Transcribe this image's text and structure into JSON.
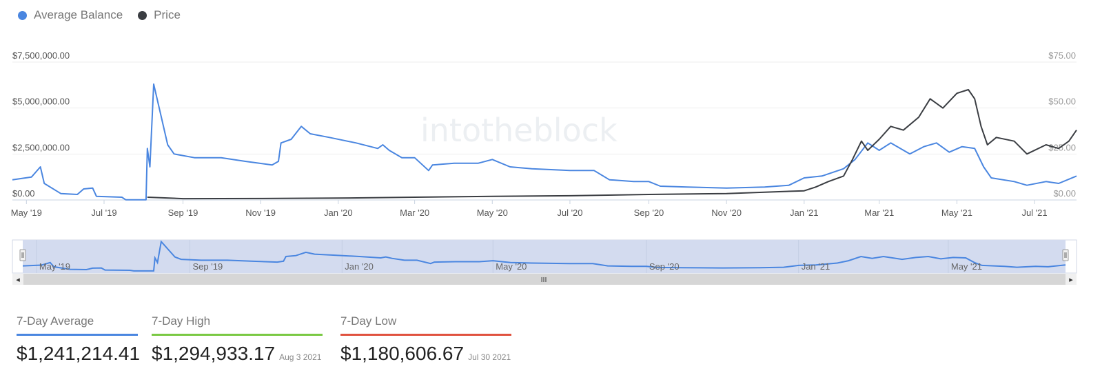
{
  "legend": {
    "items": [
      {
        "label": "Average Balance",
        "color": "#4a86e0"
      },
      {
        "label": "Price",
        "color": "#3a3d42"
      }
    ]
  },
  "watermark": "intotheblock",
  "chart_data": {
    "type": "line",
    "x_axis_type": "date",
    "x_range": [
      "2019-04-20",
      "2021-08-03"
    ],
    "x_tick_labels": [
      "May '19",
      "Jul '19",
      "Sep '19",
      "Nov '19",
      "Jan '20",
      "Mar '20",
      "May '20",
      "Jul '20",
      "Sep '20",
      "Nov '20",
      "Jan '21",
      "Mar '21",
      "May '21",
      "Jul '21"
    ],
    "x_ticks": [
      "2019-05-01",
      "2019-07-01",
      "2019-09-01",
      "2019-11-01",
      "2020-01-01",
      "2020-03-01",
      "2020-05-01",
      "2020-07-01",
      "2020-09-01",
      "2020-11-01",
      "2021-01-01",
      "2021-03-01",
      "2021-05-01",
      "2021-07-01"
    ],
    "y_left": {
      "ticks": [
        0,
        2500000,
        5000000,
        7500000
      ],
      "tick_labels": [
        "$0.00",
        "$2,500,000.00",
        "$5,000,000.00",
        "$7,500,000.00"
      ],
      "ylim": [
        0,
        7500000
      ]
    },
    "y_right": {
      "ticks": [
        0,
        25,
        50,
        75
      ],
      "tick_labels": [
        "$0.00",
        "$25.00",
        "$50.00",
        "$75.00"
      ],
      "ylim": [
        0,
        75
      ]
    },
    "grid": true,
    "legend_position": "top-left",
    "series": [
      {
        "name": "Average Balance",
        "axis": "left",
        "color": "#4a86e0",
        "points": [
          [
            "2019-04-20",
            1100000
          ],
          [
            "2019-05-05",
            1250000
          ],
          [
            "2019-05-12",
            1800000
          ],
          [
            "2019-05-15",
            900000
          ],
          [
            "2019-05-28",
            350000
          ],
          [
            "2019-06-10",
            300000
          ],
          [
            "2019-06-15",
            600000
          ],
          [
            "2019-06-22",
            650000
          ],
          [
            "2019-06-25",
            200000
          ],
          [
            "2019-07-15",
            150000
          ],
          [
            "2019-07-18",
            10000
          ],
          [
            "2019-08-03",
            10000
          ],
          [
            "2019-08-04",
            2800000
          ],
          [
            "2019-08-06",
            1800000
          ],
          [
            "2019-08-09",
            6300000
          ],
          [
            "2019-08-11",
            5700000
          ],
          [
            "2019-08-15",
            4500000
          ],
          [
            "2019-08-20",
            3000000
          ],
          [
            "2019-08-25",
            2500000
          ],
          [
            "2019-09-10",
            2300000
          ],
          [
            "2019-10-01",
            2300000
          ],
          [
            "2019-10-20",
            2100000
          ],
          [
            "2019-11-10",
            1900000
          ],
          [
            "2019-11-15",
            2100000
          ],
          [
            "2019-11-17",
            3100000
          ],
          [
            "2019-11-25",
            3300000
          ],
          [
            "2019-12-03",
            4000000
          ],
          [
            "2019-12-10",
            3600000
          ],
          [
            "2019-12-25",
            3400000
          ],
          [
            "2020-01-15",
            3100000
          ],
          [
            "2020-02-01",
            2800000
          ],
          [
            "2020-02-05",
            3000000
          ],
          [
            "2020-02-10",
            2700000
          ],
          [
            "2020-02-20",
            2300000
          ],
          [
            "2020-03-01",
            2300000
          ],
          [
            "2020-03-12",
            1600000
          ],
          [
            "2020-03-15",
            1900000
          ],
          [
            "2020-04-01",
            2000000
          ],
          [
            "2020-04-20",
            2000000
          ],
          [
            "2020-05-01",
            2200000
          ],
          [
            "2020-05-15",
            1800000
          ],
          [
            "2020-06-01",
            1700000
          ],
          [
            "2020-07-01",
            1600000
          ],
          [
            "2020-07-20",
            1600000
          ],
          [
            "2020-08-01",
            1100000
          ],
          [
            "2020-08-20",
            1000000
          ],
          [
            "2020-09-01",
            1000000
          ],
          [
            "2020-09-10",
            750000
          ],
          [
            "2020-10-01",
            700000
          ],
          [
            "2020-11-01",
            650000
          ],
          [
            "2020-12-01",
            700000
          ],
          [
            "2020-12-20",
            800000
          ],
          [
            "2021-01-01",
            1200000
          ],
          [
            "2021-01-15",
            1300000
          ],
          [
            "2021-02-01",
            1700000
          ],
          [
            "2021-02-10",
            2200000
          ],
          [
            "2021-02-20",
            3100000
          ],
          [
            "2021-03-01",
            2700000
          ],
          [
            "2021-03-10",
            3100000
          ],
          [
            "2021-03-25",
            2500000
          ],
          [
            "2021-04-05",
            2900000
          ],
          [
            "2021-04-15",
            3100000
          ],
          [
            "2021-04-25",
            2600000
          ],
          [
            "2021-05-05",
            2900000
          ],
          [
            "2021-05-15",
            2800000
          ],
          [
            "2021-05-22",
            1800000
          ],
          [
            "2021-05-28",
            1200000
          ],
          [
            "2021-06-15",
            1000000
          ],
          [
            "2021-06-25",
            800000
          ],
          [
            "2021-07-10",
            1000000
          ],
          [
            "2021-07-20",
            900000
          ],
          [
            "2021-08-03",
            1300000
          ]
        ]
      },
      {
        "name": "Price",
        "axis": "right",
        "color": "#3a3d42",
        "points": [
          [
            "2019-08-04",
            1.5
          ],
          [
            "2019-09-01",
            0.7
          ],
          [
            "2019-11-01",
            0.8
          ],
          [
            "2020-01-01",
            1.0
          ],
          [
            "2020-03-01",
            1.5
          ],
          [
            "2020-05-01",
            2.0
          ],
          [
            "2020-07-01",
            2.3
          ],
          [
            "2020-09-01",
            3.0
          ],
          [
            "2020-11-01",
            3.5
          ],
          [
            "2021-01-01",
            5.0
          ],
          [
            "2021-01-10",
            7.0
          ],
          [
            "2021-01-20",
            10.0
          ],
          [
            "2021-02-01",
            13.0
          ],
          [
            "2021-02-08",
            22.0
          ],
          [
            "2021-02-15",
            32.0
          ],
          [
            "2021-02-20",
            27.0
          ],
          [
            "2021-03-01",
            33.0
          ],
          [
            "2021-03-10",
            40.0
          ],
          [
            "2021-03-20",
            38.0
          ],
          [
            "2021-04-01",
            45.0
          ],
          [
            "2021-04-10",
            55.0
          ],
          [
            "2021-04-20",
            50.0
          ],
          [
            "2021-05-01",
            58.0
          ],
          [
            "2021-05-10",
            60.0
          ],
          [
            "2021-05-15",
            55.0
          ],
          [
            "2021-05-20",
            40.0
          ],
          [
            "2021-05-25",
            30.0
          ],
          [
            "2021-06-01",
            34.0
          ],
          [
            "2021-06-15",
            32.0
          ],
          [
            "2021-06-25",
            25.0
          ],
          [
            "2021-07-10",
            30.0
          ],
          [
            "2021-07-20",
            28.0
          ],
          [
            "2021-07-28",
            32.0
          ],
          [
            "2021-08-03",
            38.0
          ]
        ]
      }
    ]
  },
  "navigator": {
    "tick_labels": [
      "May '19",
      "Sep '19",
      "Jan '20",
      "May '20",
      "Sep '20",
      "Jan '21",
      "May '21"
    ],
    "ticks": [
      "2019-05-01",
      "2019-09-01",
      "2020-01-01",
      "2020-05-01",
      "2020-09-01",
      "2021-01-01",
      "2021-05-01"
    ],
    "selection_range": [
      "2019-04-20",
      "2021-08-03"
    ],
    "handle_glyph": "Ⅲ",
    "left_arrow": "◂",
    "right_arrow": "▸",
    "scroll_grip": "III"
  },
  "stats": [
    {
      "label": "7-Day Average",
      "value": "$1,241,214.41",
      "date": "",
      "color": "#4a86e0"
    },
    {
      "label": "7-Day High",
      "value": "$1,294,933.17",
      "date": "Aug 3 2021",
      "color": "#7ac943"
    },
    {
      "label": "7-Day Low",
      "value": "$1,180,606.67",
      "date": "Jul 30 2021",
      "color": "#e0523f"
    }
  ]
}
